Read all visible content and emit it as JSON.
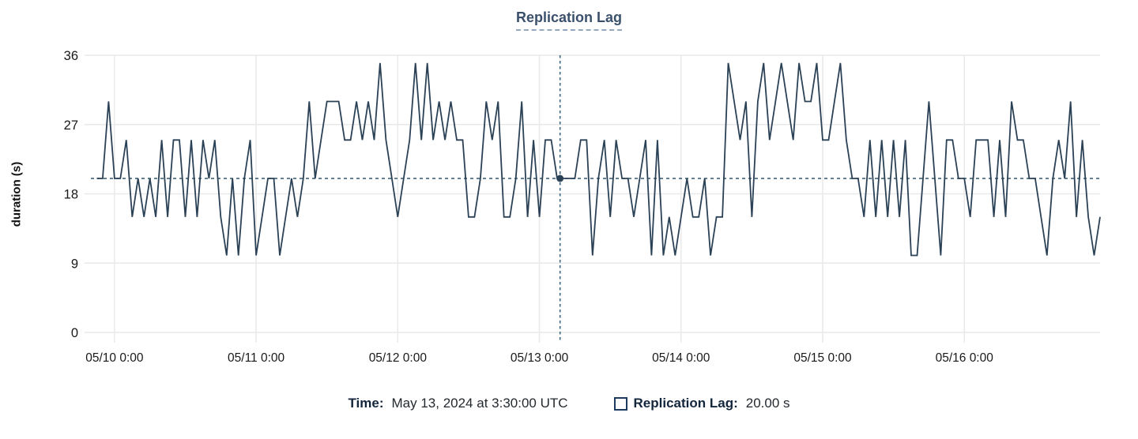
{
  "title": "Replication Lag",
  "colors": {
    "line": "#2b4156",
    "crosshair_vertical": "#3b6781",
    "crosshair_horizontal": "#2f576f",
    "point": "#2b4156",
    "grid": "#e9e9e9",
    "title_text": "#3a506b",
    "title_underline": "#93a9bf",
    "legend_label": "#14263c",
    "legend_value": "#23292e",
    "axis_text": "#191919"
  },
  "tooltip": {
    "time_label": "Time:",
    "time_value": "May 13, 2024 at 3:30:00 UTC",
    "series_label": "Replication Lag:",
    "series_value": "20.00 s"
  },
  "chart_data": {
    "type": "line",
    "title": "Replication Lag",
    "xlabel": "",
    "ylabel": "duration (s)",
    "ylim": [
      0,
      36
    ],
    "y_ticks": [
      0,
      9,
      18,
      27,
      36
    ],
    "grid": true,
    "legend_position": "bottom",
    "x_unit": "hours after 2024-05-09 20:00 UTC",
    "xlim_hours": [
      0,
      171
    ],
    "sample_interval_hours": 1,
    "points_start_hour": 1,
    "x_ticks": [
      {
        "hour": 4,
        "label": "05/10 0:00"
      },
      {
        "hour": 28,
        "label": "05/11 0:00"
      },
      {
        "hour": 52,
        "label": "05/12 0:00"
      },
      {
        "hour": 76,
        "label": "05/13 0:00"
      },
      {
        "hour": 100,
        "label": "05/14 0:00"
      },
      {
        "hour": 124,
        "label": "05/15 0:00"
      },
      {
        "hour": 148,
        "label": "05/16 0:00"
      }
    ],
    "series": [
      {
        "name": "Replication Lag",
        "unit": "s",
        "values": [
          20,
          20,
          30,
          20,
          20,
          25,
          15,
          20,
          15,
          20,
          15,
          25,
          15,
          25,
          25,
          15,
          25,
          15,
          25,
          20,
          25,
          15,
          10,
          20,
          10,
          20,
          25,
          10,
          15,
          20,
          20,
          10,
          15,
          20,
          15,
          20,
          30,
          20,
          25,
          30,
          30,
          30,
          25,
          25,
          30,
          25,
          30,
          25,
          35,
          25,
          20,
          15,
          20,
          25,
          35,
          25,
          35,
          25,
          30,
          25,
          30,
          25,
          25,
          15,
          15,
          20,
          30,
          25,
          30,
          15,
          15,
          20,
          30,
          15,
          25,
          15,
          25,
          25,
          20,
          20,
          20,
          20,
          25,
          25,
          10,
          20,
          25,
          15,
          25,
          20,
          20,
          15,
          20,
          25,
          10,
          25,
          10,
          15,
          10,
          15,
          20,
          15,
          15,
          20,
          10,
          15,
          15,
          35,
          30,
          25,
          30,
          15,
          30,
          35,
          25,
          30,
          35,
          30,
          25,
          35,
          30,
          30,
          35,
          25,
          25,
          30,
          35,
          25,
          20,
          20,
          15,
          25,
          15,
          25,
          15,
          25,
          15,
          25,
          10,
          10,
          20,
          30,
          20,
          10,
          25,
          25,
          20,
          20,
          15,
          25,
          25,
          25,
          15,
          25,
          15,
          30,
          25,
          25,
          20,
          20,
          15,
          10,
          20,
          25,
          20,
          30,
          15,
          25,
          15,
          10,
          15
        ]
      }
    ],
    "crosshair": {
      "hour": 79.5,
      "time": "May 13, 2024 at 3:30:00 UTC",
      "value": 20,
      "value_display": "20.00 s"
    }
  }
}
